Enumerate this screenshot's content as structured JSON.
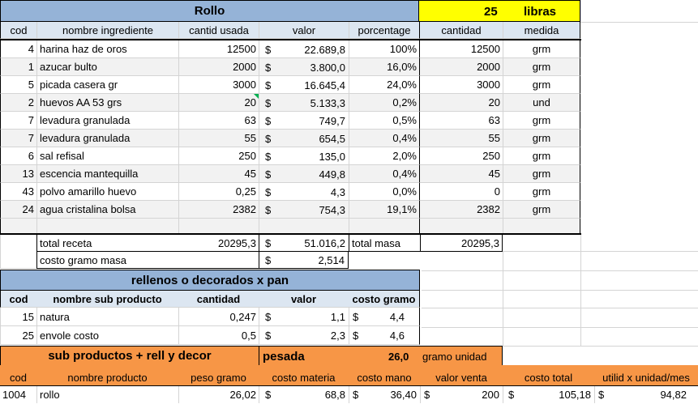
{
  "sheet": {
    "title": "Rollo",
    "batch_size": "25",
    "batch_unit": "libras",
    "headers": [
      "cod",
      "nombre ingrediente",
      "cantid usada",
      "valor",
      "porcentage",
      "cantidad",
      "medida"
    ],
    "currency": "$",
    "rows": [
      {
        "cod": "4",
        "name": "harina haz de oros",
        "used": "12500",
        "value": "22.689,8",
        "pct": "100%",
        "qty": "12500",
        "unit": "grm"
      },
      {
        "cod": "1",
        "name": "azucar bulto",
        "used": "2000",
        "value": "3.800,0",
        "pct": "16,0%",
        "qty": "2000",
        "unit": "grm"
      },
      {
        "cod": "5",
        "name": "picada casera gr",
        "used": "3000",
        "value": "16.645,4",
        "pct": "24,0%",
        "qty": "3000",
        "unit": "grm"
      },
      {
        "cod": "2",
        "name": "huevos AA 53 grs",
        "used": "20",
        "value": "5.133,3",
        "pct": "0,2%",
        "qty": "20",
        "unit": "und"
      },
      {
        "cod": "7",
        "name": "levadura granulada",
        "used": "63",
        "value": "749,7",
        "pct": "0,5%",
        "qty": "63",
        "unit": "grm"
      },
      {
        "cod": "7",
        "name": "levadura granulada",
        "used": "55",
        "value": "654,5",
        "pct": "0,4%",
        "qty": "55",
        "unit": "grm"
      },
      {
        "cod": "6",
        "name": "sal  refisal",
        "used": "250",
        "value": "135,0",
        "pct": "2,0%",
        "qty": "250",
        "unit": "grm"
      },
      {
        "cod": "13",
        "name": "escencia mantequilla",
        "used": "45",
        "value": "449,8",
        "pct": "0,4%",
        "qty": "45",
        "unit": "grm"
      },
      {
        "cod": "43",
        "name": "polvo amarillo huevo",
        "used": "0,25",
        "value": "4,3",
        "pct": "0,0%",
        "qty": "0",
        "unit": "grm"
      },
      {
        "cod": "24",
        "name": "agua cristalina bolsa",
        "used": "2382",
        "value": "754,3",
        "pct": "19,1%",
        "qty": "2382",
        "unit": "grm"
      }
    ],
    "totals": {
      "recipe_label": "total receta",
      "recipe_used": "20295,3",
      "recipe_value": "51.016,2",
      "mass_label": "total masa",
      "mass_value": "20295,3",
      "cost_label": "costo gramo masa",
      "cost_value": "2,514"
    },
    "fillings": {
      "title": "rellenos o decorados x pan",
      "headers": [
        "cod",
        "nombre sub producto",
        "cantidad",
        "valor",
        "costo gramo"
      ],
      "rows": [
        {
          "cod": "15",
          "name": "natura",
          "qty": "0,247",
          "value": "1,1",
          "cost": "4,4"
        },
        {
          "cod": "25",
          "name": "envole costo",
          "qty": "0,5",
          "value": "2,3",
          "cost": "4,6"
        }
      ]
    },
    "sub": {
      "title": "sub productos + rell y decor",
      "weighed_label": "pesada",
      "weighed_value": "26,0",
      "weighed_unit": "gramo unidad",
      "headers": [
        "cod",
        "nombre producto",
        "peso gramo",
        "costo materia",
        "costo mano",
        "valor venta",
        "costo total",
        "utilid x unidad/mes"
      ],
      "row": {
        "cod": "1004",
        "name": "rollo",
        "weight": "26,02",
        "material": "68,8",
        "labor": "36,40",
        "sale": "200",
        "total": "105,18",
        "profit": "94,82"
      }
    }
  }
}
